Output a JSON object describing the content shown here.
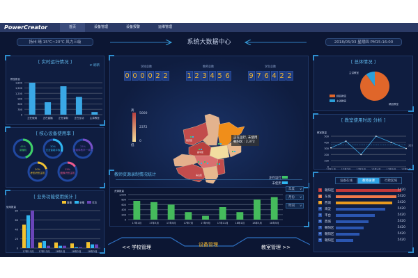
{
  "nav": {
    "logo": "PowerCreator",
    "items": [
      "首页",
      "设备管理",
      "设备报警",
      "运维管理"
    ],
    "active": 0
  },
  "header": {
    "weather": "扬州  晴  15℃~20℃  风力三级",
    "title": "系统大数据中心",
    "datetime": "2018/05/03  星期四  PM15:16:00"
  },
  "realtime": {
    "title": "实时运行情况",
    "refresh": "刷新",
    "chart_data": {
      "type": "bar",
      "ylabel": "教室数目",
      "categories": [
        "正在使用",
        "正在直播",
        "正在录制",
        "正在互动",
        "主讲教室"
      ],
      "values": [
        1800,
        700,
        1600,
        1000,
        150
      ],
      "ylim": [
        0,
        1800
      ],
      "ticks": [
        "0",
        "300",
        "600",
        "900",
        "1,200",
        "1,500",
        "1,800"
      ],
      "color": "#3aa8e6"
    }
  },
  "core": {
    "title": "核心设备使用率",
    "items": [
      {
        "label": "录播机",
        "pct": "45%",
        "value": 45,
        "color": "#3fd267"
      },
      {
        "label": "交互智能平板",
        "pct": "30%",
        "value": 30,
        "color": "#2fb6f0"
      },
      {
        "label": "多媒体教学一体机",
        "pct": "25%",
        "value": 25,
        "color": "#7a50c8"
      },
      {
        "label": "考勤识别主机",
        "pct": "20%",
        "value": 20,
        "color": "#f2c230"
      },
      {
        "label": "图像识别主机",
        "pct": "15%",
        "value": 15,
        "color": "#f05a8c"
      }
    ]
  },
  "business": {
    "title": "业务功能使用统计",
    "chart_data": {
      "type": "bar",
      "ylabel": "使用数量",
      "categories": [
        "17年11月",
        "17年12月",
        "18年1月",
        "18年2月",
        "18年3月"
      ],
      "series": [
        {
          "name": "直播",
          "values": [
            50,
            12,
            12,
            10,
            13
          ],
          "color": "#f2c230"
        },
        {
          "name": "录播",
          "values": [
            70,
            15,
            5,
            2,
            8
          ],
          "color": "#2fb6f0"
        },
        {
          "name": "互动",
          "values": [
            80,
            5,
            5,
            2,
            8
          ],
          "color": "#6a45b8"
        }
      ],
      "ylim": [
        0,
        80
      ],
      "ticks": [
        "0",
        "20",
        "40",
        "60",
        "80"
      ]
    }
  },
  "counters": [
    {
      "label": "学校总数",
      "value": "000022"
    },
    {
      "label": "教师总数",
      "value": "123456"
    },
    {
      "label": "学生总数",
      "value": "976422"
    }
  ],
  "map": {
    "scale_high": "高",
    "scale_low": "低",
    "scale_max": "5000",
    "scale_mid": "2372",
    "scale_min": "0",
    "tooltip_line1": "正在运行, 未使用",
    "tooltip_line2": "朝阳区 : 2,372",
    "legend": [
      {
        "label": "正在运行",
        "color": "#3fc46a"
      },
      {
        "label": "未使用",
        "color": "#2fb6f0"
      }
    ],
    "districts": [
      "延庆区",
      "昌平区",
      "朝阳区",
      "门头沟区",
      "房山区",
      "丰台区"
    ]
  },
  "teacher": {
    "title": "教师资源录制情况统计",
    "selects": [
      "年度",
      "月份",
      "时间"
    ],
    "chart_data": {
      "type": "bar",
      "ylabel": "资源数量",
      "categories": [
        "17年1月",
        "17年3月",
        "17年5月",
        "17年7月",
        "17年9月",
        "17年11月",
        "18年1月",
        "18年3月",
        "18年5月"
      ],
      "values": [
        750,
        700,
        600,
        300,
        150,
        500,
        300,
        800,
        900
      ],
      "ylim": [
        0,
        1000
      ],
      "ticks": [
        "0",
        "200",
        "400",
        "600",
        "800",
        "1,000"
      ],
      "color": "#45bb5c"
    }
  },
  "bottom_nav": {
    "prev": "<<  学校管理",
    "current": "设备管理",
    "next": "教室管理  >>"
  },
  "overall": {
    "title": "总体情况",
    "chart_data": {
      "type": "pie",
      "slices": [
        {
          "label": "精品教室",
          "value": 90,
          "color": "#e0662a"
        },
        {
          "label": "主讲教室",
          "value": 10,
          "color": "#2b9fd8"
        }
      ]
    }
  },
  "timeslot": {
    "title": "教室使用时段 分析",
    "chart_data": {
      "type": "line",
      "ylabel": "教室数量",
      "categories": [
        "17年1月",
        "17年2月",
        "17年3月",
        "17年4月",
        "17年5月",
        "17年6月"
      ],
      "values": [
        310,
        420,
        200,
        500,
        400,
        300
      ],
      "average": 355,
      "ylim": [
        0,
        500
      ],
      "ticks": [
        "0",
        "100",
        "200",
        "300",
        "400",
        "500"
      ],
      "color": "#3aa8e6"
    }
  },
  "ranking": {
    "tabs": [
      "设备在线",
      "教师录课",
      "行政区域"
    ],
    "active": 1,
    "items": [
      {
        "no": "1",
        "name": "朝阳区",
        "value": "5420",
        "pct": 100,
        "color": "#c0393b"
      },
      {
        "no": "2",
        "name": "东城",
        "value": "5420",
        "pct": 93,
        "color": "#f07a4a"
      },
      {
        "no": "3",
        "name": "西城",
        "value": "5420",
        "pct": 86,
        "color": "#e89a1e"
      },
      {
        "no": "4",
        "name": "海淀",
        "value": "5420",
        "pct": 75,
        "color": "#2b56b0"
      },
      {
        "no": "5",
        "name": "丰台",
        "value": "5420",
        "pct": 60,
        "color": "#2b56b0"
      },
      {
        "no": "6",
        "name": "西城",
        "value": "5420",
        "pct": 50,
        "color": "#2b56b0"
      },
      {
        "no": "7",
        "name": "朝阳区",
        "value": "5420",
        "pct": 43,
        "color": "#2b56b0"
      },
      {
        "no": "8",
        "name": "朝阳区",
        "value": "5420",
        "pct": 36,
        "color": "#2b56b0"
      },
      {
        "no": "9",
        "name": "朝阳区",
        "value": "5420",
        "pct": 27,
        "color": "#2b56b0"
      }
    ]
  }
}
